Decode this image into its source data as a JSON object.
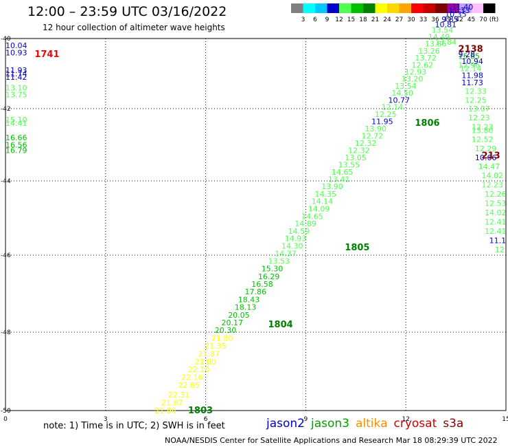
{
  "header": {
    "title": "12:00 – 23:59 UTC 03/16/2022",
    "subtitle": "12 hour collection of altimeter wave heights"
  },
  "color_scale": {
    "labels": [
      "3",
      "6",
      "9",
      "12",
      "15",
      "18",
      "21",
      "24",
      "27",
      "30",
      "33",
      "36",
      "39",
      "42",
      "45",
      "70",
      "(ft)"
    ],
    "colors": [
      "#808080",
      "#00ffff",
      "#00c8ff",
      "#0000c8",
      "#50ff50",
      "#00c000",
      "#008000",
      "#ffff00",
      "#ffd700",
      "#ffa500",
      "#ff0000",
      "#c80000",
      "#800000",
      "#a000a0",
      "#c0a0ff",
      "#ffc0ff",
      "#000000"
    ]
  },
  "chart_data": {
    "type": "scatter",
    "title": "12:00 – 23:59 UTC 03/16/2022",
    "subtitle": "12 hour collection of altimeter wave heights",
    "xlim": [
      0,
      15
    ],
    "ylim": [
      -50,
      -40
    ],
    "x_ticks": [
      "0",
      "3",
      "6",
      "9",
      "12",
      "15"
    ],
    "y_ticks": [
      "-40",
      "-42",
      "-44",
      "-46",
      "-48",
      "-50"
    ],
    "grid": true,
    "points": [
      {
        "x": 0.2,
        "y": -40.2,
        "v": "10.04",
        "c": "#0000c8"
      },
      {
        "x": 0.2,
        "y": -40.4,
        "v": "10.93",
        "c": "#0000c8"
      },
      {
        "x": 0.2,
        "y": -40.9,
        "v": "11.93",
        "c": "#0000c8"
      },
      {
        "x": 0.2,
        "y": -41.0,
        "v": "11.74",
        "c": "#0000c8"
      },
      {
        "x": 0.2,
        "y": -41.1,
        "v": "11.42",
        "c": "#0000c8"
      },
      {
        "x": 0.2,
        "y": -41.4,
        "v": "13.10",
        "c": "#50ff50"
      },
      {
        "x": 0.2,
        "y": -41.6,
        "v": "13.75",
        "c": "#50ff50"
      },
      {
        "x": 0.2,
        "y": -42.3,
        "v": "15.10",
        "c": "#50ff50"
      },
      {
        "x": 0.2,
        "y": -42.4,
        "v": "14.41",
        "c": "#50ff50"
      },
      {
        "x": 0.2,
        "y": -42.8,
        "v": "16.66",
        "c": "#00c000"
      },
      {
        "x": 0.2,
        "y": -43.0,
        "v": "16.56",
        "c": "#00c000"
      },
      {
        "x": 0.2,
        "y": -43.15,
        "v": "16.79",
        "c": "#00c000"
      },
      {
        "x": 4.8,
        "y": -50.0,
        "v": "21.96",
        "c": "#ffff00"
      },
      {
        "x": 5.0,
        "y": -49.8,
        "v": "21.87",
        "c": "#ffff00"
      },
      {
        "x": 5.2,
        "y": -49.6,
        "v": "22.31",
        "c": "#ffff00"
      },
      {
        "x": 5.5,
        "y": -49.35,
        "v": "22.05",
        "c": "#ffff00"
      },
      {
        "x": 5.6,
        "y": -49.15,
        "v": "22.16",
        "c": "#ffff00"
      },
      {
        "x": 5.8,
        "y": -48.95,
        "v": "22.10",
        "c": "#ffff00"
      },
      {
        "x": 6.0,
        "y": -48.75,
        "v": "21.80",
        "c": "#ffff00"
      },
      {
        "x": 6.1,
        "y": -48.55,
        "v": "21.87",
        "c": "#ffff00"
      },
      {
        "x": 6.3,
        "y": -48.35,
        "v": "21.35",
        "c": "#ffff00"
      },
      {
        "x": 6.5,
        "y": -48.15,
        "v": "21.80",
        "c": "#ffff00"
      },
      {
        "x": 6.6,
        "y": -47.95,
        "v": "20.30",
        "c": "#00c000"
      },
      {
        "x": 6.8,
        "y": -47.75,
        "v": "20.17",
        "c": "#00c000"
      },
      {
        "x": 7.0,
        "y": -47.55,
        "v": "20.05",
        "c": "#00c000"
      },
      {
        "x": 7.2,
        "y": -47.35,
        "v": "18.13",
        "c": "#00c000"
      },
      {
        "x": 7.3,
        "y": -47.15,
        "v": "18.43",
        "c": "#00c000"
      },
      {
        "x": 7.5,
        "y": -46.95,
        "v": "17.86",
        "c": "#00c000"
      },
      {
        "x": 7.7,
        "y": -46.75,
        "v": "16.58",
        "c": "#00c000"
      },
      {
        "x": 7.9,
        "y": -46.55,
        "v": "16.29",
        "c": "#00c000"
      },
      {
        "x": 8.0,
        "y": -46.35,
        "v": "15.30",
        "c": "#00c000"
      },
      {
        "x": 8.2,
        "y": -46.15,
        "v": "13.53",
        "c": "#50ff50"
      },
      {
        "x": 8.4,
        "y": -45.95,
        "v": "14.37",
        "c": "#50ff50"
      },
      {
        "x": 8.6,
        "y": -45.75,
        "v": "14.30",
        "c": "#50ff50"
      },
      {
        "x": 8.7,
        "y": -45.55,
        "v": "14.93",
        "c": "#50ff50"
      },
      {
        "x": 8.8,
        "y": -45.35,
        "v": "14.59",
        "c": "#50ff50"
      },
      {
        "x": 9.0,
        "y": -45.15,
        "v": "14.89",
        "c": "#50ff50"
      },
      {
        "x": 9.2,
        "y": -44.95,
        "v": "14.65",
        "c": "#50ff50"
      },
      {
        "x": 9.4,
        "y": -44.75,
        "v": "14.09",
        "c": "#50ff50"
      },
      {
        "x": 9.5,
        "y": -44.55,
        "v": "14.14",
        "c": "#50ff50"
      },
      {
        "x": 9.6,
        "y": -44.35,
        "v": "14.35",
        "c": "#50ff50"
      },
      {
        "x": 9.8,
        "y": -44.15,
        "v": "13.90",
        "c": "#50ff50"
      },
      {
        "x": 10.0,
        "y": -43.95,
        "v": "13.41",
        "c": "#50ff50"
      },
      {
        "x": 10.1,
        "y": -43.75,
        "v": "14.65",
        "c": "#50ff50"
      },
      {
        "x": 10.3,
        "y": -43.55,
        "v": "13.55",
        "c": "#50ff50"
      },
      {
        "x": 10.5,
        "y": -43.35,
        "v": "13.05",
        "c": "#50ff50"
      },
      {
        "x": 10.6,
        "y": -43.15,
        "v": "12.32",
        "c": "#50ff50"
      },
      {
        "x": 10.8,
        "y": -42.95,
        "v": "12.32",
        "c": "#50ff50"
      },
      {
        "x": 11.0,
        "y": -42.75,
        "v": "12.72",
        "c": "#50ff50"
      },
      {
        "x": 11.1,
        "y": -42.55,
        "v": "13.90",
        "c": "#50ff50"
      },
      {
        "x": 11.3,
        "y": -42.35,
        "v": "11.95",
        "c": "#0000c8"
      },
      {
        "x": 11.4,
        "y": -42.15,
        "v": "12.25",
        "c": "#50ff50"
      },
      {
        "x": 11.6,
        "y": -41.95,
        "v": "12.14",
        "c": "#50ff50"
      },
      {
        "x": 11.8,
        "y": -41.75,
        "v": "10.77",
        "c": "#0000c8"
      },
      {
        "x": 11.9,
        "y": -41.55,
        "v": "14.50",
        "c": "#50ff50"
      },
      {
        "x": 12.0,
        "y": -41.35,
        "v": "13.54",
        "c": "#50ff50"
      },
      {
        "x": 12.2,
        "y": -41.15,
        "v": "13.20",
        "c": "#50ff50"
      },
      {
        "x": 12.3,
        "y": -40.95,
        "v": "12.93",
        "c": "#50ff50"
      },
      {
        "x": 12.5,
        "y": -40.75,
        "v": "12.62",
        "c": "#50ff50"
      },
      {
        "x": 12.6,
        "y": -40.55,
        "v": "13.72",
        "c": "#50ff50"
      },
      {
        "x": 12.7,
        "y": -40.35,
        "v": "13.26",
        "c": "#50ff50"
      },
      {
        "x": 12.9,
        "y": -40.15,
        "v": "13.86",
        "c": "#50ff50"
      },
      {
        "x": 13.0,
        "y": -39.95,
        "v": "14.49",
        "c": "#50ff50"
      },
      {
        "x": 13.1,
        "y": -39.75,
        "v": "13.54",
        "c": "#50ff50"
      },
      {
        "x": 13.2,
        "y": -39.6,
        "v": "10.81",
        "c": "#0000c8"
      },
      {
        "x": 13.4,
        "y": -39.45,
        "v": "9.85",
        "c": "#0000c8"
      },
      {
        "x": 13.5,
        "y": -39.3,
        "v": "10.35",
        "c": "#0000c8"
      },
      {
        "x": 13.6,
        "y": -39.2,
        "v": "11.33",
        "c": "#0000c8"
      },
      {
        "x": 13.7,
        "y": -39.1,
        "v": "11.40",
        "c": "#0000c8"
      },
      {
        "x": 13.2,
        "y": -40.1,
        "v": "13.84",
        "c": "#50ff50"
      },
      {
        "x": 13.9,
        "y": -40.5,
        "v": "15.85",
        "c": "#00c000"
      },
      {
        "x": 13.9,
        "y": -40.75,
        "v": "12.96",
        "c": "#50ff50"
      },
      {
        "x": 14.0,
        "y": -41.05,
        "v": "11.98",
        "c": "#0000c8"
      },
      {
        "x": 14.0,
        "y": -41.25,
        "v": "11.73",
        "c": "#0000c8"
      },
      {
        "x": 14.1,
        "y": -41.5,
        "v": "12.33",
        "c": "#50ff50"
      },
      {
        "x": 14.1,
        "y": -41.75,
        "v": "12.25",
        "c": "#50ff50"
      },
      {
        "x": 14.2,
        "y": -42.0,
        "v": "13.07",
        "c": "#50ff50"
      },
      {
        "x": 14.2,
        "y": -42.25,
        "v": "12.23",
        "c": "#50ff50"
      },
      {
        "x": 14.3,
        "y": -42.5,
        "v": "12.23",
        "c": "#50ff50"
      },
      {
        "x": 14.3,
        "y": -42.6,
        "v": "13.80",
        "c": "#50ff50"
      },
      {
        "x": 14.3,
        "y": -42.85,
        "v": "12.52",
        "c": "#50ff50"
      },
      {
        "x": 14.4,
        "y": -43.1,
        "v": "12.29",
        "c": "#50ff50"
      },
      {
        "x": 14.4,
        "y": -43.35,
        "v": "10.66",
        "c": "#0000c8"
      },
      {
        "x": 14.5,
        "y": -43.6,
        "v": "14.47",
        "c": "#50ff50"
      },
      {
        "x": 14.6,
        "y": -43.85,
        "v": "14.02",
        "c": "#50ff50"
      },
      {
        "x": 14.6,
        "y": -44.1,
        "v": "12.23",
        "c": "#50ff50"
      },
      {
        "x": 14.7,
        "y": -44.35,
        "v": "12.26",
        "c": "#50ff50"
      },
      {
        "x": 14.7,
        "y": -44.6,
        "v": "12.53",
        "c": "#50ff50"
      },
      {
        "x": 14.8,
        "y": -44.85,
        "v": "14.02",
        "c": "#50ff50"
      },
      {
        "x": 14.9,
        "y": -45.1,
        "v": "12.41",
        "c": "#50ff50"
      },
      {
        "x": 15.0,
        "y": -45.35,
        "v": "12.41",
        "c": "#50ff50"
      },
      {
        "x": 15.0,
        "y": -45.6,
        "v": "11.1",
        "c": "#0000c8"
      },
      {
        "x": 15.0,
        "y": -45.85,
        "v": "12",
        "c": "#50ff50"
      }
    ],
    "track_labels": [
      {
        "x": 1.2,
        "y": -40.45,
        "text": "1741",
        "c": "#ff0000"
      },
      {
        "x": 5.8,
        "y": -50.0,
        "text": "1803",
        "c": "#008000"
      },
      {
        "x": 8.2,
        "y": -47.8,
        "text": "1804",
        "c": "#008000"
      },
      {
        "x": 10.5,
        "y": -45.8,
        "text": "1805",
        "c": "#008000"
      },
      {
        "x": 12.6,
        "y": -42.4,
        "text": "1806",
        "c": "#008000"
      },
      {
        "x": 13.9,
        "y": -40.3,
        "text": "2138",
        "c": "#800000"
      },
      {
        "x": 14.6,
        "y": -43.3,
        "text": "213",
        "c": "#800000"
      }
    ],
    "extra_top_values": [
      {
        "x": 13.9,
        "y": -40.45,
        "v": "9.28",
        "c": "#0000c8"
      },
      {
        "x": 14.0,
        "y": -40.65,
        "v": "10.94",
        "c": "#0000c8"
      },
      {
        "x": 13.95,
        "y": -40.85,
        "v": "12.14",
        "c": "#50ff50"
      }
    ]
  },
  "footer": {
    "note": "note:  1) Time is in UTC;  2) SWH is in feet",
    "satellites": [
      {
        "name": "jason2",
        "color": "#0000c8"
      },
      {
        "name": "jason3",
        "color": "#00a000"
      },
      {
        "name": "altika",
        "color": "#ff8c00"
      },
      {
        "name": "cryosat",
        "color": "#d00000"
      },
      {
        "name": "s3a",
        "color": "#800000"
      }
    ],
    "credit": "NOAA/NESDIS Center for Satellite Applications and Research    Mar 18 08:29:39 UTC 2022"
  }
}
